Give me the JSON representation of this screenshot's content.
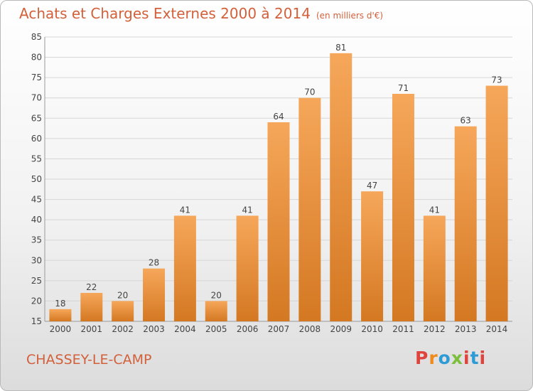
{
  "header": {
    "title": "Achats et Charges Externes 2000 à 2014",
    "unit": "(en milliers d'€)"
  },
  "footer": {
    "town": "CHASSEY-LE-CAMP",
    "brand": [
      "P",
      "r",
      "o",
      "x",
      "i",
      "t",
      "i"
    ]
  },
  "colors": {
    "title": "#d2603a",
    "bar_top": "#f6a75a",
    "bar_bottom": "#d47822",
    "grid": "#d6d6d6",
    "axis_text": "#444444",
    "brand": [
      "#e0423c",
      "#f08a1c",
      "#2f9bd6",
      "#7cbf3d",
      "#e0423c",
      "#2f9bd6",
      "#e0423c"
    ]
  },
  "chart_data": {
    "type": "bar",
    "title": "Achats et Charges Externes 2000 à 2014",
    "subtitle": "(en milliers d'€)",
    "categories": [
      "2000",
      "2001",
      "2002",
      "2003",
      "2004",
      "2005",
      "2006",
      "2007",
      "2008",
      "2009",
      "2010",
      "2011",
      "2012",
      "2013",
      "2014"
    ],
    "values": [
      18,
      22,
      20,
      28,
      41,
      20,
      41,
      64,
      70,
      81,
      47,
      71,
      41,
      63,
      73
    ],
    "ylim": [
      15,
      85
    ],
    "yticks": [
      15,
      20,
      25,
      30,
      35,
      40,
      45,
      50,
      55,
      60,
      65,
      70,
      75,
      80,
      85
    ],
    "grid": true,
    "legend": "none"
  }
}
